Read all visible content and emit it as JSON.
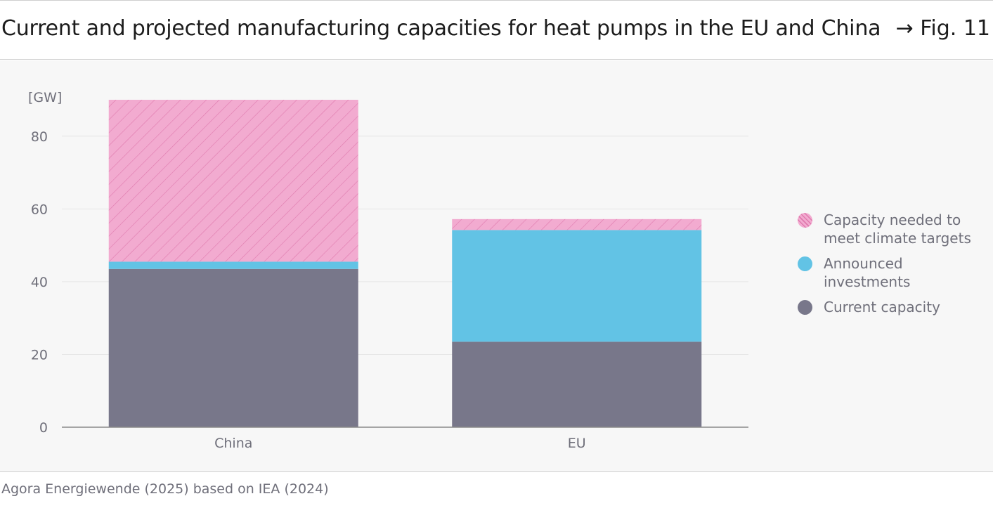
{
  "header": {
    "title": "Current and projected manufacturing capacities for heat pumps in the EU and China",
    "fig_ref": "→ Fig. 11"
  },
  "source": "Agora Energiewende (2025) based on IEA (2024)",
  "colors": {
    "current": "#78778a",
    "announced": "#62c3e5",
    "needed": "#f2abd0",
    "needed_hatch": "#e07aae",
    "grid": "#e6e6e6",
    "axis": "#8a8a8a",
    "text": "#6f6f7a"
  },
  "chart_data": {
    "type": "bar",
    "stacked": true,
    "categories": [
      "China",
      "EU"
    ],
    "ylabel": "[GW]",
    "ylim": [
      0,
      90
    ],
    "yticks": [
      0,
      20,
      40,
      60,
      80
    ],
    "grid": true,
    "legend_position": "right",
    "series": [
      {
        "name": "Current capacity",
        "values": [
          43.5,
          23.5
        ],
        "color_key": "current"
      },
      {
        "name": "Announced investments",
        "values": [
          2,
          30.7
        ],
        "color_key": "announced"
      },
      {
        "name": "Capacity needed to meet climate targets",
        "values": [
          44.5,
          3
        ],
        "color_key": "needed",
        "hatched": true
      }
    ]
  },
  "legend": {
    "items": [
      {
        "label_line1": "Capacity needed to",
        "label_line2": "meet climate targets",
        "swatch": "needed",
        "icon": "hatched-circle-icon"
      },
      {
        "label_line1": "Announced",
        "label_line2": "investments",
        "swatch": "announced",
        "icon": "circle-icon"
      },
      {
        "label_line1": "Current capacity",
        "label_line2": "",
        "swatch": "current",
        "icon": "circle-icon"
      }
    ]
  }
}
